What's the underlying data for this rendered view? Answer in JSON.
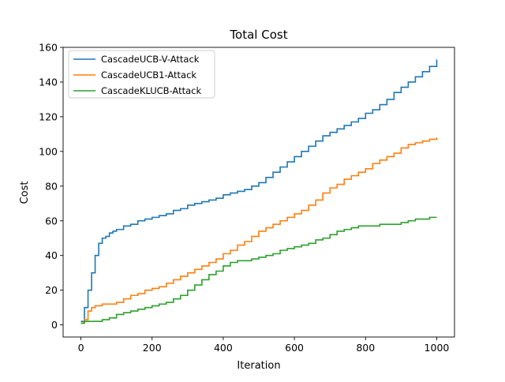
{
  "chart_data": {
    "type": "line",
    "title": "Total Cost",
    "xlabel": "Iteration",
    "ylabel": "Cost",
    "xlim": [
      -50,
      1050
    ],
    "ylim": [
      -7,
      160
    ],
    "xticks": [
      0,
      200,
      400,
      600,
      800,
      1000
    ],
    "yticks": [
      0,
      20,
      40,
      60,
      80,
      100,
      120,
      140,
      160
    ],
    "grid": false,
    "legend_position": "upper-left",
    "series": [
      {
        "name": "CascadeUCB-V-Attack",
        "color": "#1f77b4",
        "x": [
          0,
          10,
          20,
          30,
          40,
          50,
          60,
          70,
          80,
          90,
          100,
          120,
          140,
          160,
          180,
          200,
          220,
          240,
          260,
          280,
          300,
          320,
          340,
          360,
          380,
          400,
          420,
          440,
          460,
          480,
          500,
          520,
          540,
          560,
          580,
          600,
          620,
          640,
          660,
          680,
          700,
          720,
          740,
          760,
          780,
          800,
          820,
          840,
          860,
          880,
          900,
          920,
          940,
          960,
          980,
          1000
        ],
        "y": [
          2,
          10,
          20,
          30,
          40,
          47,
          50,
          51,
          53,
          54,
          55,
          57,
          58,
          60,
          61,
          62,
          63,
          64,
          66,
          67,
          69,
          70,
          71,
          72,
          73,
          75,
          76,
          77,
          78,
          80,
          82,
          85,
          88,
          91,
          94,
          97,
          100,
          103,
          106,
          109,
          111,
          113,
          115,
          117,
          119,
          122,
          124,
          127,
          130,
          134,
          137,
          140,
          143,
          146,
          149,
          153
        ]
      },
      {
        "name": "CascadeUCB1-Attack",
        "color": "#ff7f0e",
        "x": [
          0,
          10,
          20,
          30,
          40,
          50,
          60,
          80,
          100,
          120,
          140,
          160,
          180,
          200,
          220,
          240,
          260,
          280,
          300,
          320,
          340,
          360,
          380,
          400,
          420,
          440,
          460,
          480,
          500,
          520,
          540,
          560,
          580,
          600,
          620,
          640,
          660,
          680,
          700,
          720,
          740,
          760,
          780,
          800,
          820,
          840,
          860,
          880,
          900,
          920,
          940,
          960,
          980,
          1000
        ],
        "y": [
          1,
          3,
          8,
          10,
          11,
          11,
          12,
          12,
          13,
          15,
          17,
          18,
          20,
          21,
          22,
          24,
          26,
          28,
          30,
          32,
          34,
          36,
          38,
          41,
          43,
          46,
          48,
          51,
          54,
          56,
          58,
          60,
          62,
          64,
          66,
          69,
          72,
          76,
          79,
          81,
          84,
          86,
          88,
          90,
          93,
          95,
          97,
          99,
          102,
          104,
          105,
          106,
          107,
          108
        ]
      },
      {
        "name": "CascadeKLUCB-Attack",
        "color": "#2ca02c",
        "x": [
          0,
          10,
          20,
          40,
          60,
          80,
          100,
          120,
          140,
          160,
          180,
          200,
          220,
          240,
          260,
          280,
          300,
          320,
          340,
          360,
          380,
          400,
          420,
          440,
          460,
          480,
          500,
          520,
          540,
          560,
          580,
          600,
          620,
          640,
          660,
          680,
          700,
          720,
          740,
          760,
          780,
          800,
          820,
          840,
          860,
          880,
          900,
          920,
          940,
          960,
          980,
          1000
        ],
        "y": [
          1,
          2,
          2,
          2,
          3,
          4,
          6,
          7,
          8,
          9,
          10,
          11,
          12,
          13,
          15,
          17,
          20,
          23,
          26,
          29,
          31,
          34,
          36,
          37,
          37,
          38,
          39,
          40,
          41,
          43,
          44,
          45,
          46,
          47,
          49,
          50,
          52,
          54,
          55,
          56,
          57,
          57,
          57,
          58,
          58,
          58,
          59,
          60,
          61,
          61,
          62,
          62
        ]
      }
    ]
  }
}
